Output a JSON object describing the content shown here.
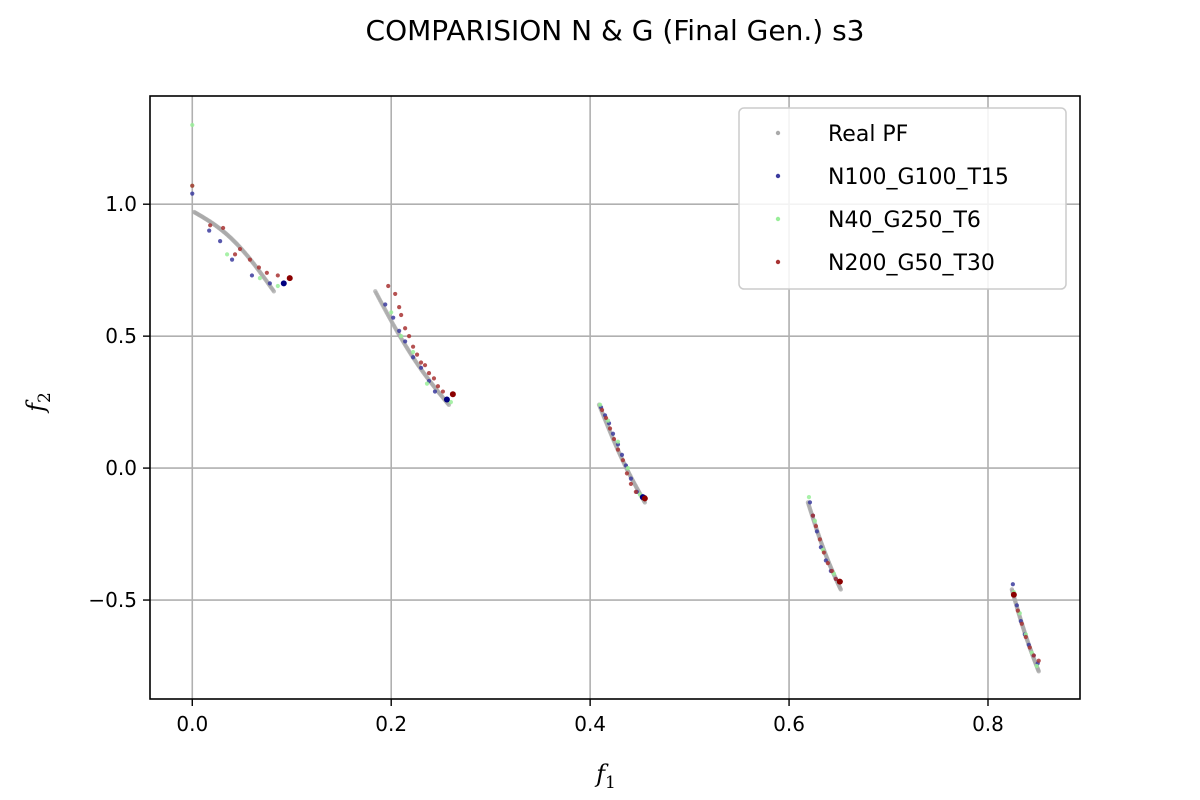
{
  "chart_data": {
    "type": "scatter",
    "title": "COMPARISION N & G (Final Gen.) s3",
    "xlabel": "f",
    "xlabel_sub": "1",
    "ylabel": "f",
    "ylabel_sub": "2",
    "xlim": [
      -0.0425,
      0.8925
    ],
    "ylim": [
      -0.875,
      1.41
    ],
    "xticks": [
      {
        "value": 0.0,
        "label": "0.0"
      },
      {
        "value": 0.2,
        "label": "0.2"
      },
      {
        "value": 0.4,
        "label": "0.4"
      },
      {
        "value": 0.6,
        "label": "0.6"
      },
      {
        "value": 0.8,
        "label": "0.8"
      }
    ],
    "yticks": [
      {
        "value": -0.5,
        "label": "−0.5"
      },
      {
        "value": 0.0,
        "label": "0.0"
      },
      {
        "value": 0.5,
        "label": "0.5"
      },
      {
        "value": 1.0,
        "label": "1.0"
      }
    ],
    "grid": true,
    "legend_position": "top-right",
    "series": [
      {
        "name": "Real PF",
        "color": "#aaaaaa",
        "segments": [
          {
            "x0": 0.002,
            "x1": 0.082,
            "y0": 0.97,
            "y1": 0.67,
            "bow": 0.04,
            "n": 80
          },
          {
            "x0": 0.184,
            "x1": 0.258,
            "y0": 0.67,
            "y1": 0.24,
            "bow": -0.03,
            "n": 80
          },
          {
            "x0": 0.409,
            "x1": 0.455,
            "y0": 0.24,
            "y1": -0.13,
            "bow": -0.02,
            "n": 70
          },
          {
            "x0": 0.619,
            "x1": 0.652,
            "y0": -0.13,
            "y1": -0.46,
            "bow": -0.02,
            "n": 70
          },
          {
            "x0": 0.824,
            "x1": 0.851,
            "y0": -0.46,
            "y1": -0.77,
            "bow": -0.015,
            "n": 70
          }
        ]
      },
      {
        "name": "N100_G100_T15",
        "color": "#3b3b9e",
        "points": [
          [
            0.0,
            1.04
          ],
          [
            0.017,
            0.9
          ],
          [
            0.028,
            0.86
          ],
          [
            0.04,
            0.79
          ],
          [
            0.06,
            0.73
          ],
          [
            0.078,
            0.7
          ],
          [
            0.092,
            0.7
          ],
          [
            0.194,
            0.62
          ],
          [
            0.202,
            0.57
          ],
          [
            0.208,
            0.52
          ],
          [
            0.214,
            0.48
          ],
          [
            0.222,
            0.42
          ],
          [
            0.23,
            0.38
          ],
          [
            0.238,
            0.33
          ],
          [
            0.244,
            0.29
          ],
          [
            0.256,
            0.26
          ],
          [
            0.411,
            0.23
          ],
          [
            0.415,
            0.2
          ],
          [
            0.419,
            0.17
          ],
          [
            0.423,
            0.13
          ],
          [
            0.428,
            0.09
          ],
          [
            0.432,
            0.05
          ],
          [
            0.436,
            0.01
          ],
          [
            0.441,
            -0.04
          ],
          [
            0.447,
            -0.09
          ],
          [
            0.453,
            -0.11
          ],
          [
            0.621,
            -0.13
          ],
          [
            0.624,
            -0.18
          ],
          [
            0.628,
            -0.24
          ],
          [
            0.632,
            -0.3
          ],
          [
            0.637,
            -0.35
          ],
          [
            0.642,
            -0.39
          ],
          [
            0.647,
            -0.42
          ],
          [
            0.651,
            -0.43
          ],
          [
            0.825,
            -0.44
          ],
          [
            0.829,
            -0.52
          ],
          [
            0.833,
            -0.58
          ],
          [
            0.837,
            -0.63
          ],
          [
            0.841,
            -0.67
          ],
          [
            0.846,
            -0.71
          ],
          [
            0.85,
            -0.74
          ]
        ]
      },
      {
        "name": "N40_G250_T6",
        "color": "#99ee99",
        "points": [
          [
            0.0,
            1.3
          ],
          [
            0.0,
            1.07
          ],
          [
            0.035,
            0.81
          ],
          [
            0.068,
            0.72
          ],
          [
            0.086,
            0.69
          ],
          [
            0.2,
            0.59
          ],
          [
            0.21,
            0.5
          ],
          [
            0.222,
            0.44
          ],
          [
            0.236,
            0.32
          ],
          [
            0.26,
            0.25
          ],
          [
            0.41,
            0.24
          ],
          [
            0.418,
            0.18
          ],
          [
            0.428,
            0.1
          ],
          [
            0.438,
            0.0
          ],
          [
            0.45,
            -0.1
          ],
          [
            0.62,
            -0.11
          ],
          [
            0.626,
            -0.2
          ],
          [
            0.634,
            -0.31
          ],
          [
            0.645,
            -0.4
          ],
          [
            0.826,
            -0.47
          ],
          [
            0.832,
            -0.55
          ],
          [
            0.838,
            -0.63
          ],
          [
            0.844,
            -0.7
          ],
          [
            0.849,
            -0.75
          ]
        ]
      },
      {
        "name": "N200_G50_T30",
        "color": "#a83232",
        "points": [
          [
            0.0,
            1.07
          ],
          [
            0.018,
            0.92
          ],
          [
            0.031,
            0.91
          ],
          [
            0.043,
            0.81
          ],
          [
            0.048,
            0.83
          ],
          [
            0.058,
            0.79
          ],
          [
            0.067,
            0.76
          ],
          [
            0.075,
            0.74
          ],
          [
            0.086,
            0.73
          ],
          [
            0.098,
            0.72
          ],
          [
            0.197,
            0.69
          ],
          [
            0.204,
            0.66
          ],
          [
            0.208,
            0.61
          ],
          [
            0.21,
            0.58
          ],
          [
            0.214,
            0.53
          ],
          [
            0.218,
            0.5
          ],
          [
            0.222,
            0.46
          ],
          [
            0.226,
            0.43
          ],
          [
            0.23,
            0.4
          ],
          [
            0.234,
            0.39
          ],
          [
            0.238,
            0.36
          ],
          [
            0.243,
            0.34
          ],
          [
            0.247,
            0.31
          ],
          [
            0.252,
            0.29
          ],
          [
            0.262,
            0.28
          ],
          [
            0.412,
            0.22
          ],
          [
            0.416,
            0.19
          ],
          [
            0.42,
            0.15
          ],
          [
            0.424,
            0.11
          ],
          [
            0.428,
            0.07
          ],
          [
            0.433,
            0.03
          ],
          [
            0.437,
            -0.02
          ],
          [
            0.441,
            -0.06
          ],
          [
            0.446,
            -0.09
          ],
          [
            0.455,
            -0.11
          ],
          [
            0.624,
            -0.18
          ],
          [
            0.627,
            -0.22
          ],
          [
            0.631,
            -0.27
          ],
          [
            0.635,
            -0.32
          ],
          [
            0.639,
            -0.36
          ],
          [
            0.643,
            -0.39
          ],
          [
            0.647,
            -0.42
          ],
          [
            0.652,
            -0.43
          ],
          [
            0.826,
            -0.48
          ],
          [
            0.83,
            -0.54
          ],
          [
            0.834,
            -0.59
          ],
          [
            0.838,
            -0.64
          ],
          [
            0.842,
            -0.68
          ],
          [
            0.846,
            -0.71
          ],
          [
            0.851,
            -0.73
          ]
        ]
      }
    ],
    "highlight_points": [
      {
        "x": 0.092,
        "y": 0.7,
        "color": "#000080"
      },
      {
        "x": 0.098,
        "y": 0.72,
        "color": "#8b0000"
      },
      {
        "x": 0.256,
        "y": 0.26,
        "color": "#000080"
      },
      {
        "x": 0.262,
        "y": 0.28,
        "color": "#8b0000"
      },
      {
        "x": 0.453,
        "y": -0.11,
        "color": "#000080"
      },
      {
        "x": 0.455,
        "y": -0.115,
        "color": "#8b0000"
      },
      {
        "x": 0.651,
        "y": -0.43,
        "color": "#8b0000"
      },
      {
        "x": 0.826,
        "y": -0.48,
        "color": "#8b0000"
      }
    ]
  }
}
